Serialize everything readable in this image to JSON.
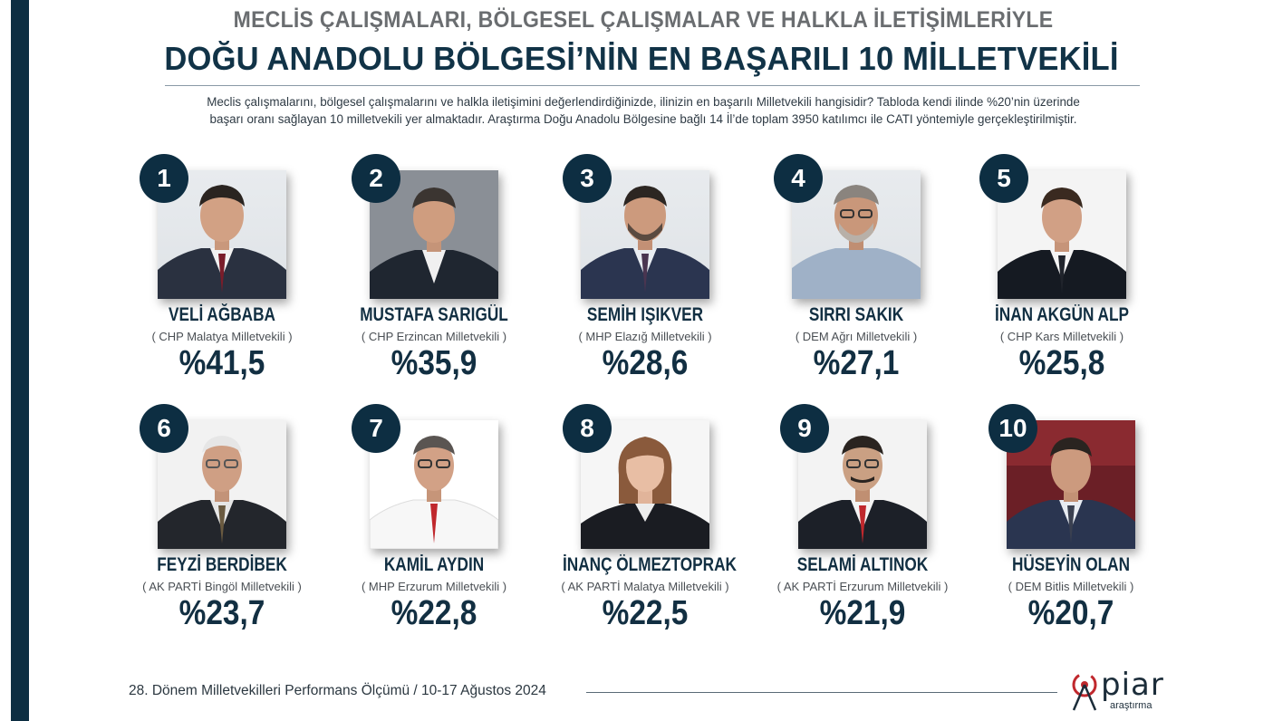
{
  "header": {
    "title_top": "MECLİS ÇALIŞMALARI, BÖLGESEL ÇALIŞMALAR VE HALKLA İLETİŞİMLERİYLE",
    "title_main": "DOĞU ANADOLU BÖLGESİ’NİN EN BAŞARILI 10 MİLLETVEKİLİ",
    "intro_line1": "Meclis çalışmalarını, bölgesel çalışmalarını  ve halkla iletişimini değerlendirdiğinizde, ilinizin en başarılı Milletvekili hangisidir? Tabloda kendi ilinde %20’nin üzerinde",
    "intro_line2": "başarı oranı sağlayan 10 milletvekili yer almaktadır. Araştırma Doğu Anadolu Bölgesine bağlı 14 İl’de toplam 3950 katılımcı ile  CATI yöntemiyle gerçekleştirilmiştir."
  },
  "deputies": [
    {
      "rank": "1",
      "name": "VELİ AĞBABA",
      "party": "( CHP Malatya Milletvekili )",
      "score": "%41,5"
    },
    {
      "rank": "2",
      "name": "MUSTAFA SARIGÜL",
      "party": "( CHP Erzincan Milletvekili )",
      "score": "%35,9"
    },
    {
      "rank": "3",
      "name": "SEMİH IŞIKVER",
      "party": "( MHP Elazığ Milletvekili )",
      "score": "%28,6"
    },
    {
      "rank": "4",
      "name": "SIRRI SAKIK",
      "party": "( DEM Ağrı Milletvekili )",
      "score": "%27,1"
    },
    {
      "rank": "5",
      "name": "İNAN AKGÜN ALP",
      "party": "( CHP Kars Milletvekili )",
      "score": "%25,8"
    },
    {
      "rank": "6",
      "name": "FEYZİ BERDİBEK",
      "party": "( AK PARTİ Bingöl Milletvekili )",
      "score": "%23,7"
    },
    {
      "rank": "7",
      "name": "KAMİL AYDIN",
      "party": "( MHP Erzurum Milletvekili )",
      "score": "%22,8"
    },
    {
      "rank": "8",
      "name": "İNANÇ ÖLMEZTOPRAK",
      "party": "( AK PARTİ Malatya Milletvekili )",
      "score": "%22,5"
    },
    {
      "rank": "9",
      "name": "SELAMİ ALTINOK",
      "party": "( AK PARTİ Erzurum Milletvekili )",
      "score": "%21,9"
    },
    {
      "rank": "10",
      "name": "HÜSEYİN OLAN",
      "party": "( DEM Bitlis Milletvekili )",
      "score": "%20,7"
    }
  ],
  "footer": {
    "text": "28. Dönem Milletvekilleri Performans Ölçümü / 10-17 Ağustos 2024",
    "logo_word": "piar",
    "logo_sub": "araştırma"
  },
  "colors": {
    "navy": "#0d2e42",
    "accent_red": "#c0282d"
  }
}
